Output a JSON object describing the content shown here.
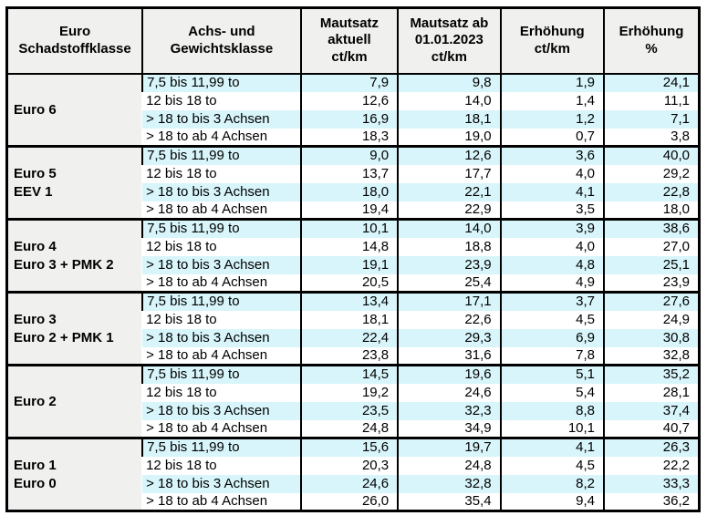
{
  "table": {
    "headers": [
      "Euro\nSchadstoffklasse",
      "Achs- und\nGewichtsklasse",
      "Mautsatz\naktuell\nct/km",
      "Mautsatz ab\n01.01.2023\nct/km",
      "Erhöhung\nct/km",
      "Erhöhung\n%"
    ],
    "groups": [
      {
        "label": "Euro 6",
        "rows": [
          {
            "klasse": "7,5 bis 11,99 to",
            "aktuell": "7,9",
            "ab2023": "9,8",
            "erhoehung_ct": "1,9",
            "erhoehung_pct": "24,1"
          },
          {
            "klasse": "12 bis 18 to",
            "aktuell": "12,6",
            "ab2023": "14,0",
            "erhoehung_ct": "1,4",
            "erhoehung_pct": "11,1"
          },
          {
            "klasse": "> 18 to bis 3 Achsen",
            "aktuell": "16,9",
            "ab2023": "18,1",
            "erhoehung_ct": "1,2",
            "erhoehung_pct": "7,1"
          },
          {
            "klasse": "> 18 to ab 4 Achsen",
            "aktuell": "18,3",
            "ab2023": "19,0",
            "erhoehung_ct": "0,7",
            "erhoehung_pct": "3,8"
          }
        ]
      },
      {
        "label": "Euro 5\nEEV 1",
        "rows": [
          {
            "klasse": "7,5 bis 11,99 to",
            "aktuell": "9,0",
            "ab2023": "12,6",
            "erhoehung_ct": "3,6",
            "erhoehung_pct": "40,0"
          },
          {
            "klasse": "12 bis 18 to",
            "aktuell": "13,7",
            "ab2023": "17,7",
            "erhoehung_ct": "4,0",
            "erhoehung_pct": "29,2"
          },
          {
            "klasse": "> 18 to bis 3 Achsen",
            "aktuell": "18,0",
            "ab2023": "22,1",
            "erhoehung_ct": "4,1",
            "erhoehung_pct": "22,8"
          },
          {
            "klasse": "> 18 to ab 4 Achsen",
            "aktuell": "19,4",
            "ab2023": "22,9",
            "erhoehung_ct": "3,5",
            "erhoehung_pct": "18,0"
          }
        ]
      },
      {
        "label": "Euro 4\nEuro 3 + PMK 2",
        "rows": [
          {
            "klasse": "7,5 bis 11,99 to",
            "aktuell": "10,1",
            "ab2023": "14,0",
            "erhoehung_ct": "3,9",
            "erhoehung_pct": "38,6"
          },
          {
            "klasse": "12 bis 18 to",
            "aktuell": "14,8",
            "ab2023": "18,8",
            "erhoehung_ct": "4,0",
            "erhoehung_pct": "27,0"
          },
          {
            "klasse": "> 18 to bis 3 Achsen",
            "aktuell": "19,1",
            "ab2023": "23,9",
            "erhoehung_ct": "4,8",
            "erhoehung_pct": "25,1"
          },
          {
            "klasse": "> 18 to ab 4 Achsen",
            "aktuell": "20,5",
            "ab2023": "25,4",
            "erhoehung_ct": "4,9",
            "erhoehung_pct": "23,9"
          }
        ]
      },
      {
        "label": "Euro 3\nEuro 2 + PMK 1",
        "rows": [
          {
            "klasse": "7,5 bis 11,99 to",
            "aktuell": "13,4",
            "ab2023": "17,1",
            "erhoehung_ct": "3,7",
            "erhoehung_pct": "27,6"
          },
          {
            "klasse": "12 bis 18 to",
            "aktuell": "18,1",
            "ab2023": "22,6",
            "erhoehung_ct": "4,5",
            "erhoehung_pct": "24,9"
          },
          {
            "klasse": "> 18 to bis 3 Achsen",
            "aktuell": "22,4",
            "ab2023": "29,3",
            "erhoehung_ct": "6,9",
            "erhoehung_pct": "30,8"
          },
          {
            "klasse": "> 18 to ab 4 Achsen",
            "aktuell": "23,8",
            "ab2023": "31,6",
            "erhoehung_ct": "7,8",
            "erhoehung_pct": "32,8"
          }
        ]
      },
      {
        "label": "Euro 2",
        "rows": [
          {
            "klasse": "7,5 bis 11,99 to",
            "aktuell": "14,5",
            "ab2023": "19,6",
            "erhoehung_ct": "5,1",
            "erhoehung_pct": "35,2"
          },
          {
            "klasse": "12 bis 18 to",
            "aktuell": "19,2",
            "ab2023": "24,6",
            "erhoehung_ct": "5,4",
            "erhoehung_pct": "28,1"
          },
          {
            "klasse": "> 18 to bis 3 Achsen",
            "aktuell": "23,5",
            "ab2023": "32,3",
            "erhoehung_ct": "8,8",
            "erhoehung_pct": "37,4"
          },
          {
            "klasse": "> 18 to ab 4 Achsen",
            "aktuell": "24,8",
            "ab2023": "34,9",
            "erhoehung_ct": "10,1",
            "erhoehung_pct": "40,7"
          }
        ]
      },
      {
        "label": "Euro 1\nEuro 0",
        "rows": [
          {
            "klasse": "7,5 bis 11,99 to",
            "aktuell": "15,6",
            "ab2023": "19,7",
            "erhoehung_ct": "4,1",
            "erhoehung_pct": "26,3"
          },
          {
            "klasse": "12 bis 18 to",
            "aktuell": "20,3",
            "ab2023": "24,8",
            "erhoehung_ct": "4,5",
            "erhoehung_pct": "22,2"
          },
          {
            "klasse": "> 18 to bis 3 Achsen",
            "aktuell": "24,6",
            "ab2023": "32,8",
            "erhoehung_ct": "8,2",
            "erhoehung_pct": "33,3"
          },
          {
            "klasse": "> 18 to ab 4 Achsen",
            "aktuell": "26,0",
            "ab2023": "35,4",
            "erhoehung_ct": "9,4",
            "erhoehung_pct": "36,2"
          }
        ]
      }
    ]
  },
  "colors": {
    "band_cyan": "#d7f5fa",
    "band_white": "#ffffff",
    "label_gray": "#f0f0ee",
    "border_black": "#000000"
  }
}
